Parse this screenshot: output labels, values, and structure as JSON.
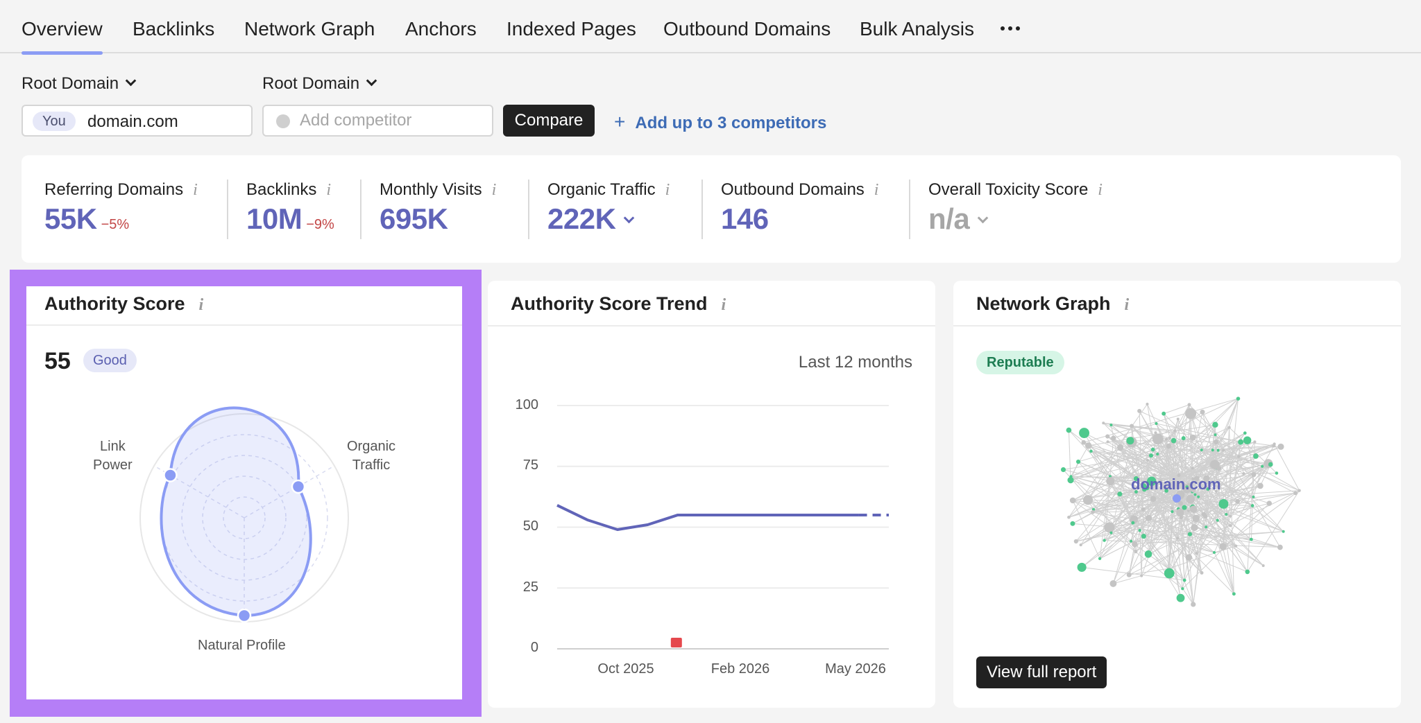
{
  "tabs": [
    {
      "label": "Overview",
      "active": true
    },
    {
      "label": "Backlinks"
    },
    {
      "label": "Network Graph"
    },
    {
      "label": "Anchors"
    },
    {
      "label": "Indexed Pages"
    },
    {
      "label": "Outbound Domains"
    },
    {
      "label": "Bulk Analysis"
    }
  ],
  "more_icon": "more-horizontal-icon",
  "domain_selector": {
    "you": {
      "dropdown_label": "Root Domain",
      "badge": "You",
      "value": "domain.com"
    },
    "competitor": {
      "dropdown_label": "Root Domain",
      "placeholder": "Add competitor"
    },
    "compare_label": "Compare",
    "add_competitors_label": "Add up to 3 competitors"
  },
  "metrics": [
    {
      "label": "Referring Domains",
      "value": "55K",
      "delta": "−5%"
    },
    {
      "label": "Backlinks",
      "value": "10M",
      "delta": "−9%"
    },
    {
      "label": "Monthly Visits",
      "value": "695K"
    },
    {
      "label": "Organic Traffic",
      "value": "222K",
      "has_dropdown": true
    },
    {
      "label": "Outbound Domains",
      "value": "146"
    },
    {
      "label": "Overall Toxicity Score",
      "value": "n/a",
      "muted": true,
      "has_dropdown": true
    }
  ],
  "authority_score": {
    "title": "Authority Score",
    "score": "55",
    "rating": "Good",
    "axes": {
      "link_power": [
        "Link",
        "Power"
      ],
      "organic_traffic": [
        "Organic",
        "Traffic"
      ],
      "natural_profile": "Natural Profile"
    },
    "values": {
      "link_power": 0.82,
      "organic_traffic": 0.6,
      "natural_profile": 0.94
    }
  },
  "trend": {
    "title": "Authority Score Trend",
    "period": "Last 12 months",
    "chart_data": {
      "type": "line",
      "x": [
        "Jul 2025",
        "Aug 2025",
        "Sep 2025",
        "Oct 2025",
        "Nov 2025",
        "Dec 2025",
        "Jan 2026",
        "Feb 2026",
        "Mar 2026",
        "Apr 2026",
        "May 2026",
        "Jun 2026"
      ],
      "series": [
        {
          "values": [
            59,
            53,
            49,
            51,
            55,
            55,
            55,
            55,
            55,
            55,
            55,
            55
          ],
          "projected_from_index": 10
        }
      ],
      "yticks": [
        0,
        25,
        50,
        75,
        100
      ],
      "ylim": [
        0,
        100
      ],
      "xtick_labels": [
        {
          "label": "Oct 2025",
          "index": 2.3
        },
        {
          "label": "Feb 2026",
          "index": 6.1
        },
        {
          "label": "May 2026",
          "index": 9.9
        }
      ],
      "markers": [
        {
          "type": "flag",
          "index": 4,
          "color": "#e5484d"
        }
      ],
      "line_color": "#6064b8",
      "grid": true
    }
  },
  "network": {
    "title": "Network Graph",
    "badge": "Reputable",
    "center_label": "domain.com",
    "button_label": "View full report"
  },
  "colors": {
    "accent": "#6064b8",
    "negative": "#c24545",
    "highlight": "#b57ef7",
    "network_reputable": "#4fc98d",
    "network_neutral": "#c4c4c4"
  }
}
